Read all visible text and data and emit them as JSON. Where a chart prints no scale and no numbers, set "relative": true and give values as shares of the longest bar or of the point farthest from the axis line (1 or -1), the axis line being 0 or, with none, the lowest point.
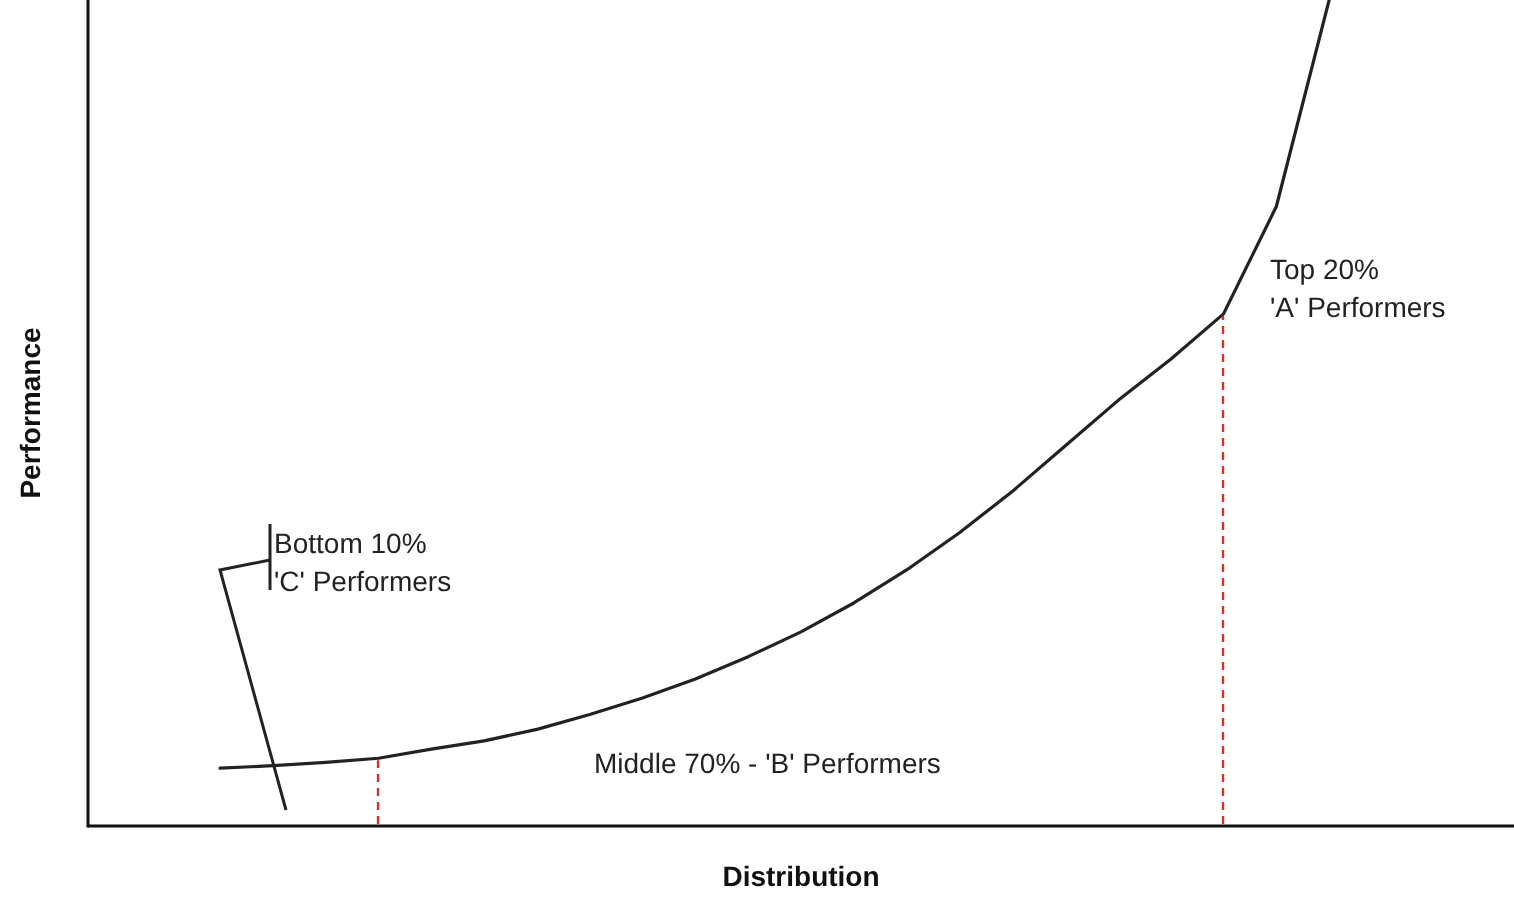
{
  "chart_data": {
    "type": "line",
    "xlabel": "Distribution",
    "ylabel": "Performance",
    "relative": true,
    "marker": "none",
    "line_style": "solid",
    "categories": [
      null,
      null,
      null,
      null,
      null,
      null,
      null,
      null,
      null,
      null,
      null,
      null,
      null,
      null,
      null,
      null,
      null,
      null,
      null,
      null,
      null,
      null,
      null,
      null,
      null,
      null,
      null
    ],
    "series": [
      {
        "color": "#222222",
        "values": [
          null,
          null,
          0.07,
          0.073,
          0.077,
          0.082,
          0.093,
          0.103,
          0.117,
          0.135,
          0.155,
          0.178,
          0.205,
          0.235,
          0.27,
          0.31,
          0.355,
          0.405,
          0.46,
          0.515,
          0.565,
          0.62,
          0.75,
          1,
          null,
          null,
          null
        ]
      }
    ],
    "annotations": [
      "Top 20%\n'A' Performers",
      "Middle 70% - 'B' Performers",
      "Bottom 10%\n'C' Performers"
    ]
  }
}
